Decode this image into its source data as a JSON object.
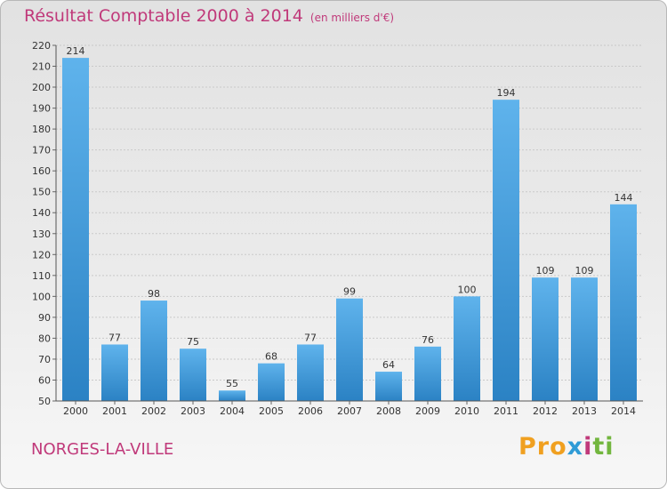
{
  "chart_data": {
    "type": "bar",
    "title": "Résultat Comptable 2000 à 2014",
    "subtitle": "(en milliers d'€)",
    "categories": [
      "2000",
      "2001",
      "2002",
      "2003",
      "2004",
      "2005",
      "2006",
      "2007",
      "2008",
      "2009",
      "2010",
      "2011",
      "2012",
      "2013",
      "2014"
    ],
    "values": [
      214,
      77,
      98,
      75,
      55,
      68,
      77,
      99,
      64,
      76,
      100,
      194,
      109,
      109,
      144
    ],
    "yticks": [
      50,
      60,
      70,
      80,
      90,
      100,
      110,
      120,
      130,
      140,
      150,
      160,
      170,
      180,
      190,
      200,
      210,
      220
    ],
    "ylim": [
      50,
      220
    ],
    "grid": true,
    "bar_color": "#3e9ee0"
  },
  "location": "NORGES-LA-VILLE",
  "logo": {
    "p1": "Pro",
    "p2": "x",
    "p3": "i",
    "p4": "ti"
  }
}
